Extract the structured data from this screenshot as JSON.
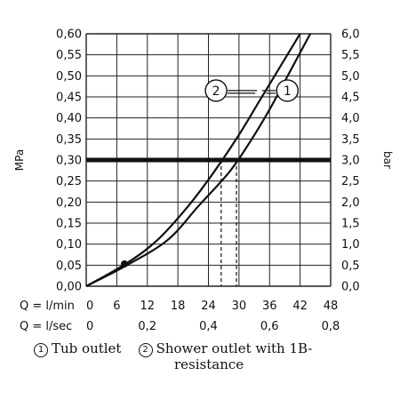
{
  "chart_data": {
    "type": "line",
    "left_axis": {
      "label": "MPa",
      "ticks": [
        "0,00",
        "0,05",
        "0,10",
        "0,15",
        "0,20",
        "0,25",
        "0,30",
        "0,35",
        "0,40",
        "0,45",
        "0,50",
        "0,55",
        "0,60"
      ],
      "range": [
        0,
        0.6
      ]
    },
    "right_axis": {
      "label": "bar",
      "ticks": [
        "0,0",
        "0,5",
        "1,0",
        "1,5",
        "2,0",
        "2,5",
        "3,0",
        "3,5",
        "4,0",
        "4,5",
        "5,0",
        "5,5",
        "6,0"
      ],
      "range": [
        0,
        6
      ]
    },
    "x_axis": {
      "range": [
        0,
        48
      ],
      "row1": {
        "label": "Q = l/min",
        "ticks": [
          "0",
          "6",
          "12",
          "18",
          "24",
          "30",
          "36",
          "42",
          "48"
        ]
      },
      "row2": {
        "label": "Q = l/sec",
        "ticks": [
          "0",
          "0,2",
          "0,4",
          "0,6",
          "0,8"
        ]
      }
    },
    "grid": true,
    "reference_line": {
      "y": 0.3
    },
    "dashed_markers": [
      26.5,
      29.5
    ],
    "series": [
      {
        "id": "1",
        "x": [
          0,
          8,
          16,
          22,
          28,
          32,
          36,
          40,
          44
        ],
        "y": [
          0,
          0.05,
          0.11,
          0.19,
          0.27,
          0.34,
          0.42,
          0.51,
          0.6
        ]
      },
      {
        "id": "2",
        "x": [
          0,
          8,
          14,
          20,
          25,
          30,
          34,
          38,
          42
        ],
        "y": [
          0,
          0.055,
          0.11,
          0.19,
          0.27,
          0.36,
          0.44,
          0.52,
          0.6
        ]
      }
    ],
    "callouts": [
      {
        "text": "2",
        "x": 25.5,
        "y": 0.465
      },
      {
        "text": "1",
        "x": 39.5,
        "y": 0.465
      }
    ],
    "marker_point": {
      "x": 7.5,
      "y": 0.053
    }
  },
  "legend": {
    "item1": {
      "mark": "1",
      "text": "Tub outlet"
    },
    "item2": {
      "mark": "2",
      "text": "Shower outlet with 1B-",
      "text_cont": "resistance"
    }
  }
}
